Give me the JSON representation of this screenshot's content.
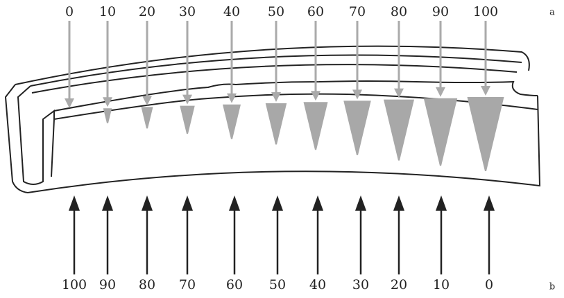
{
  "top_labels": [
    0,
    10,
    20,
    30,
    40,
    50,
    60,
    70,
    80,
    90,
    100
  ],
  "bottom_labels": [
    100,
    90,
    80,
    70,
    60,
    50,
    40,
    30,
    20,
    10,
    0
  ],
  "panel_labels": [
    "a",
    "b"
  ]
}
